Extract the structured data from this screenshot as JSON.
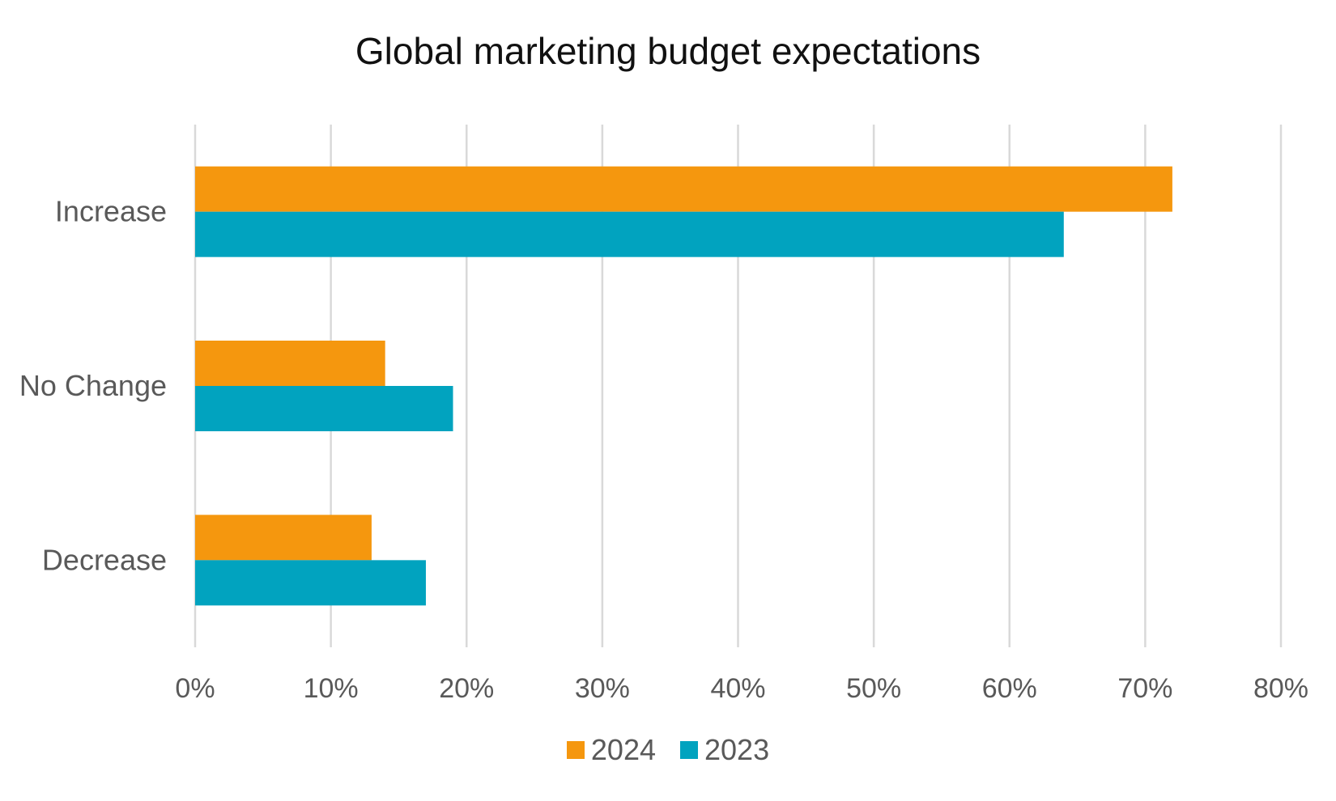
{
  "chart_data": {
    "type": "bar",
    "orientation": "horizontal",
    "title": "Global marketing budget expectations",
    "xlabel": "",
    "ylabel": "",
    "categories": [
      "Increase",
      "No Change",
      "Decrease"
    ],
    "series": [
      {
        "name": "2024",
        "values": [
          72,
          14,
          13
        ],
        "color": "#F5970E"
      },
      {
        "name": "2023",
        "values": [
          64,
          19,
          17
        ],
        "color": "#01A3BF"
      }
    ],
    "xlim": [
      0,
      80
    ],
    "x_ticks": [
      "0%",
      "10%",
      "20%",
      "30%",
      "40%",
      "50%",
      "60%",
      "70%",
      "80%"
    ],
    "value_unit": "%",
    "grid": "vertical",
    "gridline_color": "#D9D9D9",
    "legend_position": "bottom"
  }
}
